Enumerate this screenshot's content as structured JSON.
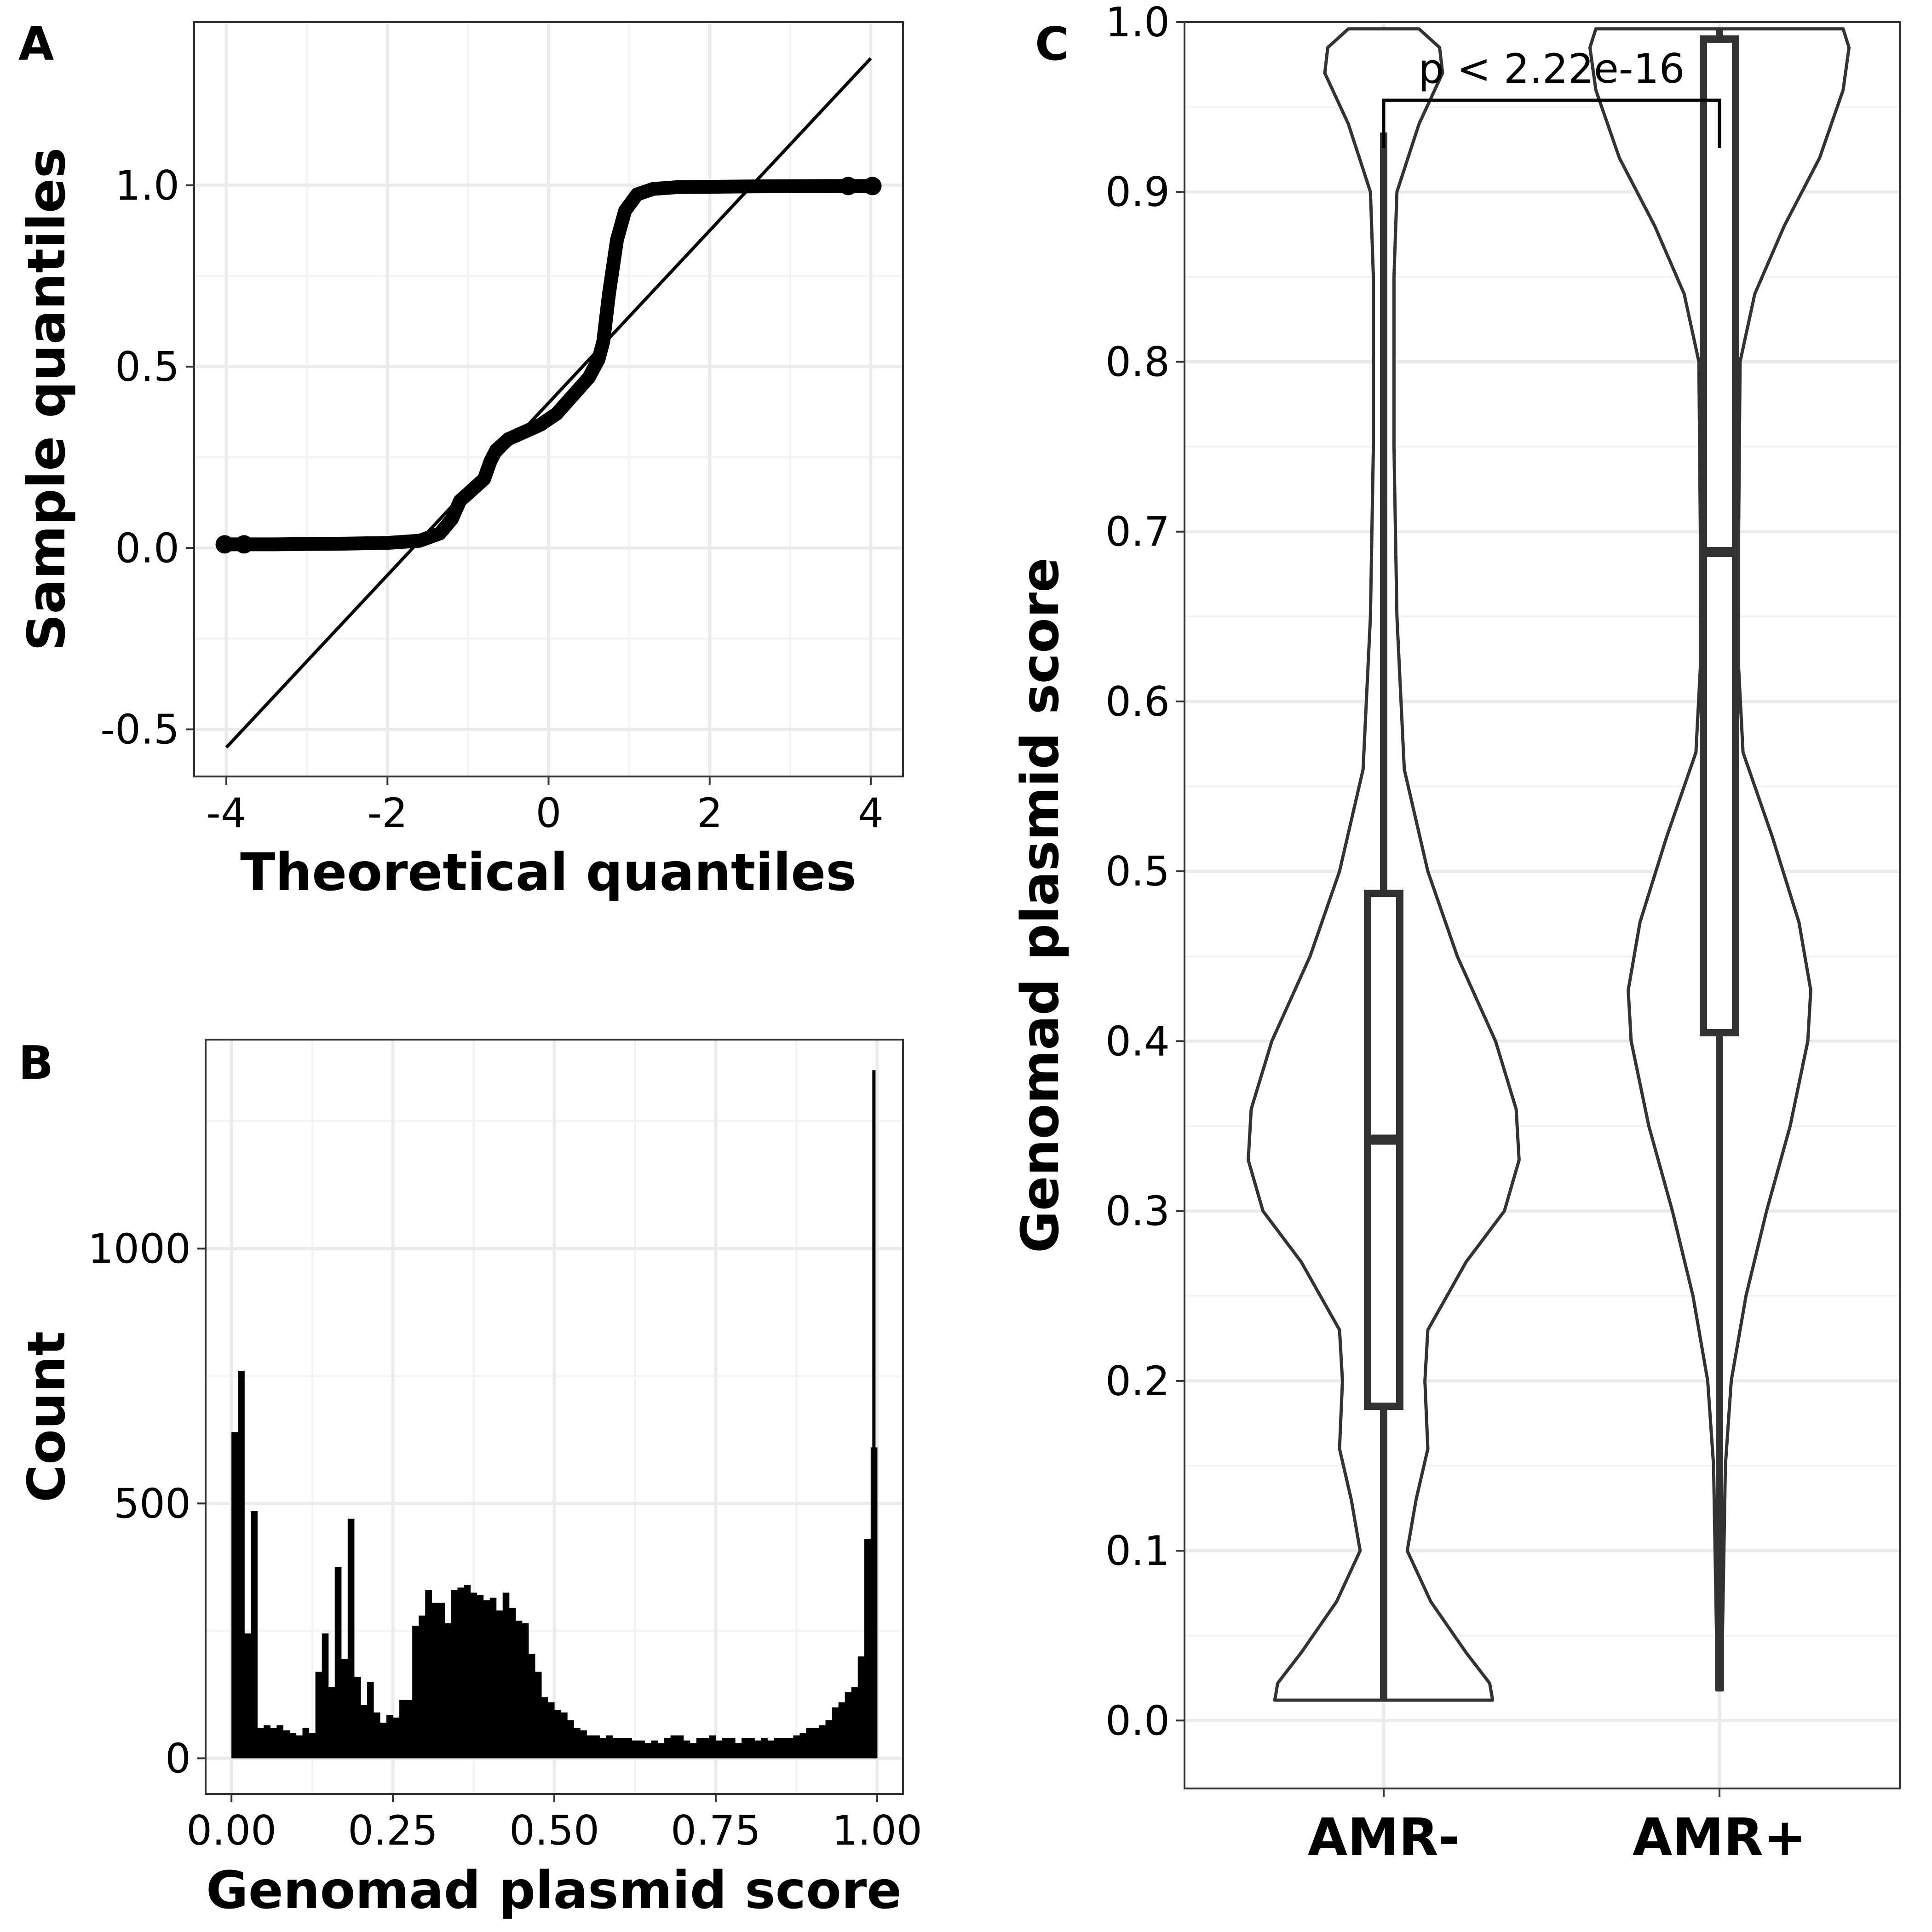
{
  "panels": {
    "a": {
      "label": "A"
    },
    "b": {
      "label": "B"
    },
    "c": {
      "label": "C"
    }
  },
  "chart_data": [
    {
      "id": "A",
      "type": "scatter",
      "subtype": "qq-plot",
      "xlabel": "Theoretical quantiles",
      "ylabel": "Sample quantiles",
      "xlim": [
        -4.4,
        4.4
      ],
      "ylim": [
        -0.63,
        1.45
      ],
      "xticks": [
        -4,
        -2,
        0,
        2,
        4
      ],
      "xtick_labels": [
        "-4",
        "-2",
        "0",
        "2",
        "4"
      ],
      "yticks": [
        -0.5,
        0.0,
        0.5,
        1.0
      ],
      "ytick_labels": [
        "-0.5",
        "0.0",
        "0.5",
        "1.0"
      ],
      "grid": true,
      "reference_line": {
        "x": [
          -4.0,
          4.0
        ],
        "y": [
          -0.55,
          1.35
        ]
      },
      "sample_curve": [
        [
          -4.02,
          0.01
        ],
        [
          -3.8,
          0.01
        ],
        [
          -3.4,
          0.01
        ],
        [
          -3.0,
          0.011
        ],
        [
          -2.5,
          0.012
        ],
        [
          -2.0,
          0.014
        ],
        [
          -1.6,
          0.02
        ],
        [
          -1.35,
          0.04
        ],
        [
          -1.2,
          0.08
        ],
        [
          -1.1,
          0.13
        ],
        [
          -1.0,
          0.15
        ],
        [
          -0.9,
          0.17
        ],
        [
          -0.8,
          0.19
        ],
        [
          -0.72,
          0.24
        ],
        [
          -0.65,
          0.27
        ],
        [
          -0.5,
          0.3
        ],
        [
          -0.3,
          0.32
        ],
        [
          -0.1,
          0.34
        ],
        [
          0.1,
          0.37
        ],
        [
          0.3,
          0.42
        ],
        [
          0.5,
          0.47
        ],
        [
          0.62,
          0.52
        ],
        [
          0.68,
          0.57
        ],
        [
          0.75,
          0.7
        ],
        [
          0.85,
          0.85
        ],
        [
          0.95,
          0.93
        ],
        [
          1.1,
          0.975
        ],
        [
          1.3,
          0.99
        ],
        [
          1.6,
          0.995
        ],
        [
          2.5,
          0.997
        ],
        [
          3.5,
          0.998
        ],
        [
          3.78,
          0.998
        ],
        [
          4.02,
          0.998
        ]
      ],
      "endpoint_markers": [
        [
          -4.02,
          0.01
        ],
        [
          -3.78,
          0.01
        ],
        [
          3.72,
          0.998
        ],
        [
          4.02,
          0.998
        ]
      ]
    },
    {
      "id": "B",
      "type": "bar",
      "subtype": "histogram",
      "xlabel": "Genomad plasmid score",
      "ylabel": "Count",
      "xlim": [
        -0.04,
        1.04
      ],
      "ylim": [
        -70,
        1410
      ],
      "xticks": [
        0.0,
        0.25,
        0.5,
        0.75,
        1.0
      ],
      "xtick_labels": [
        "0.00",
        "0.25",
        "0.50",
        "0.75",
        "1.00"
      ],
      "yticks": [
        0,
        500,
        1000
      ],
      "ytick_labels": [
        "0",
        "500",
        "1000"
      ],
      "grid": true,
      "bin_start": 0.005,
      "bin_width": 0.01,
      "counts": [
        640,
        760,
        245,
        485,
        60,
        65,
        60,
        65,
        55,
        50,
        45,
        60,
        50,
        170,
        245,
        140,
        375,
        195,
        470,
        160,
        105,
        150,
        90,
        70,
        85,
        80,
        115,
        115,
        260,
        280,
        330,
        305,
        305,
        265,
        330,
        335,
        340,
        325,
        320,
        310,
        315,
        290,
        325,
        295,
        270,
        265,
        205,
        170,
        120,
        110,
        95,
        90,
        75,
        60,
        55,
        45,
        45,
        40,
        45,
        40,
        40,
        40,
        35,
        35,
        30,
        35,
        30,
        40,
        45,
        45,
        35,
        30,
        40,
        40,
        45,
        35,
        40,
        40,
        30,
        40,
        40,
        35,
        40,
        35,
        40,
        40,
        40,
        45,
        50,
        60,
        60,
        65,
        75,
        100,
        110,
        130,
        140,
        200,
        430,
        610
      ],
      "spike": {
        "x": 0.995,
        "count": 1350
      }
    },
    {
      "id": "C",
      "type": "violin",
      "xlabel": "",
      "ylabel": "Genomad plasmid score",
      "categories": [
        "AMR-",
        "AMR+"
      ],
      "ylim": [
        -0.04,
        1.0
      ],
      "yticks": [
        0.0,
        0.1,
        0.2,
        0.3,
        0.4,
        0.5,
        0.6,
        0.7,
        0.8,
        0.9,
        1.0
      ],
      "ytick_labels": [
        "0.0",
        "0.1",
        "0.2",
        "0.3",
        "0.4",
        "0.5",
        "0.6",
        "0.7",
        "0.8",
        "0.9",
        "1.0"
      ],
      "grid": true,
      "annotation": "p < 2.22e-16",
      "boxes": [
        {
          "category": "AMR-",
          "min": 0.012,
          "q1": 0.185,
          "median": 0.342,
          "q3": 0.487,
          "max": 0.935
        },
        {
          "category": "AMR+",
          "min": 0.018,
          "q1": 0.405,
          "median": 0.688,
          "q3": 0.99,
          "max": 0.996
        }
      ],
      "violins": [
        {
          "category": "AMR-",
          "profile": [
            [
              0.012,
              0.37
            ],
            [
              0.022,
              0.36
            ],
            [
              0.04,
              0.28
            ],
            [
              0.07,
              0.16
            ],
            [
              0.1,
              0.08
            ],
            [
              0.13,
              0.11
            ],
            [
              0.16,
              0.15
            ],
            [
              0.2,
              0.14
            ],
            [
              0.23,
              0.15
            ],
            [
              0.27,
              0.28
            ],
            [
              0.3,
              0.41
            ],
            [
              0.33,
              0.46
            ],
            [
              0.36,
              0.45
            ],
            [
              0.4,
              0.38
            ],
            [
              0.45,
              0.25
            ],
            [
              0.5,
              0.15
            ],
            [
              0.56,
              0.07
            ],
            [
              0.65,
              0.045
            ],
            [
              0.75,
              0.035
            ],
            [
              0.85,
              0.035
            ],
            [
              0.9,
              0.045
            ],
            [
              0.94,
              0.12
            ],
            [
              0.97,
              0.2
            ],
            [
              0.985,
              0.19
            ],
            [
              0.996,
              0.12
            ]
          ]
        },
        {
          "category": "AMR+",
          "profile": [
            [
              0.018,
              0.01
            ],
            [
              0.05,
              0.01
            ],
            [
              0.1,
              0.015
            ],
            [
              0.15,
              0.02
            ],
            [
              0.2,
              0.04
            ],
            [
              0.25,
              0.09
            ],
            [
              0.3,
              0.16
            ],
            [
              0.35,
              0.24
            ],
            [
              0.4,
              0.3
            ],
            [
              0.43,
              0.31
            ],
            [
              0.47,
              0.27
            ],
            [
              0.52,
              0.18
            ],
            [
              0.57,
              0.08
            ],
            [
              0.62,
              0.065
            ],
            [
              0.7,
              0.065
            ],
            [
              0.8,
              0.07
            ],
            [
              0.84,
              0.12
            ],
            [
              0.88,
              0.22
            ],
            [
              0.92,
              0.34
            ],
            [
              0.96,
              0.42
            ],
            [
              0.985,
              0.44
            ],
            [
              0.996,
              0.42
            ]
          ]
        }
      ]
    }
  ]
}
